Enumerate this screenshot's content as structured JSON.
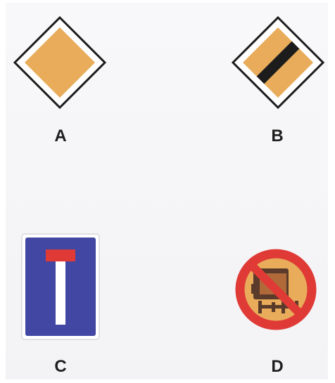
{
  "signs": [
    {
      "label": "A",
      "meaning": "priority-road-icon"
    },
    {
      "label": "B",
      "meaning": "end-of-priority-road-icon"
    },
    {
      "label": "C",
      "meaning": "dead-end-road-icon"
    },
    {
      "label": "D",
      "meaning": "no-trucks-with-trailer-icon"
    }
  ],
  "colors": {
    "background": "#f5f5f8",
    "sign_yellow": "#e8ac5a",
    "sign_outline": "#1c1c1c",
    "sign_blue": "#4247a3",
    "sign_red": "#df3a36",
    "truck_brown": "#5a3a2a"
  }
}
